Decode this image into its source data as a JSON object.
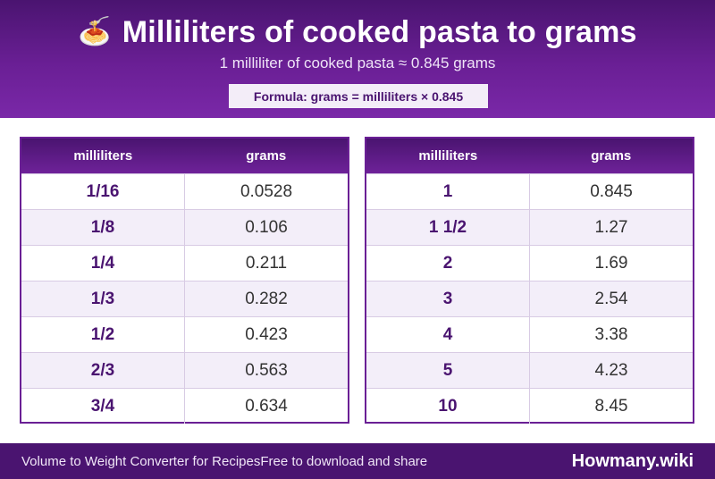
{
  "header": {
    "icon": "spaghetti-icon",
    "icon_glyph": "🍝",
    "title": "Milliliters of cooked pasta to grams",
    "subtitle": "1 milliliter of cooked pasta ≈ 0.845 grams",
    "formula": "Formula: grams = milliliters × 0.845"
  },
  "tables": [
    {
      "headers": [
        "milliliters",
        "grams"
      ],
      "rows": [
        [
          "1/16",
          "0.0528"
        ],
        [
          "1/8",
          "0.106"
        ],
        [
          "1/4",
          "0.211"
        ],
        [
          "1/3",
          "0.282"
        ],
        [
          "1/2",
          "0.423"
        ],
        [
          "2/3",
          "0.563"
        ],
        [
          "3/4",
          "0.634"
        ]
      ]
    },
    {
      "headers": [
        "milliliters",
        "grams"
      ],
      "rows": [
        [
          "1",
          "0.845"
        ],
        [
          "1 1/2",
          "1.27"
        ],
        [
          "2",
          "1.69"
        ],
        [
          "3",
          "2.54"
        ],
        [
          "4",
          "3.38"
        ],
        [
          "5",
          "4.23"
        ],
        [
          "10",
          "8.45"
        ]
      ]
    }
  ],
  "footer": {
    "left": "Volume to Weight Converter for Recipes",
    "mid": "Free to download and share",
    "brand": "Howmany.wiki"
  },
  "colors": {
    "primary": "#4a1470",
    "accent": "#6a1f95",
    "row_alt": "#f3eef9"
  }
}
